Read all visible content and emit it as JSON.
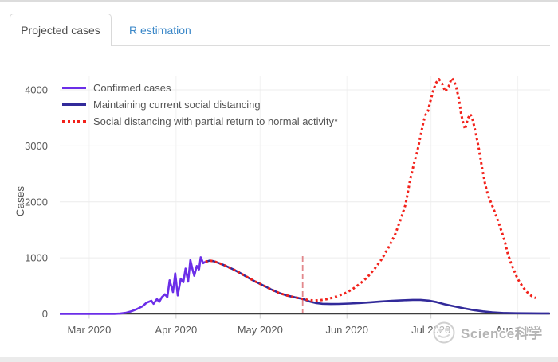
{
  "tabs": {
    "items": [
      {
        "label": "Projected cases",
        "active": true
      },
      {
        "label": "R estimation",
        "active": false
      }
    ]
  },
  "watermark": {
    "text": "Science科学"
  },
  "chart_data": {
    "type": "line",
    "title": "",
    "xlabel": "",
    "ylabel": "Cases",
    "x_axis": {
      "unit": "days since 2020-03-01",
      "range_days": [
        -10.5,
        164.5
      ],
      "tick_days": [
        0,
        31,
        61,
        92,
        122,
        153
      ],
      "tick_labels": [
        "Mar 2020",
        "Apr 2020",
        "May 2020",
        "Jun 2020",
        "Jul 2020",
        "Aug 2020"
      ]
    },
    "y_axis": {
      "range": [
        0,
        4000
      ],
      "ticks": [
        0,
        1000,
        2000,
        3000,
        4000
      ],
      "tick_labels": [
        "0",
        "1000",
        "2000",
        "3000",
        "4000"
      ]
    },
    "grid": true,
    "legend_position": "top-left",
    "vline": {
      "day": 76.2,
      "value_top": 1030,
      "value_bottom": -35,
      "color": "#dd6b70",
      "style": "dashed"
    },
    "colors": {
      "axis_line": "#3d3d3d",
      "grid_h": "#ececec",
      "grid_v": "#f2f2f2",
      "tick_text": "#5a5a5a"
    },
    "series": [
      {
        "name": "Confirmed cases",
        "color": "#6b2ee8",
        "style": "solid",
        "points": [
          [
            -10.5,
            0
          ],
          [
            -6,
            0
          ],
          [
            -2,
            0
          ],
          [
            2,
            0
          ],
          [
            6,
            0
          ],
          [
            9,
            2
          ],
          [
            11,
            5
          ],
          [
            13,
            18
          ],
          [
            15,
            45
          ],
          [
            17,
            85
          ],
          [
            19,
            135
          ],
          [
            20.5,
            200
          ],
          [
            22.2,
            235
          ],
          [
            23,
            180
          ],
          [
            24.2,
            265
          ],
          [
            25,
            215
          ],
          [
            25.9,
            295
          ],
          [
            27,
            350
          ],
          [
            27.9,
            300
          ],
          [
            28.7,
            600
          ],
          [
            29.9,
            390
          ],
          [
            30.7,
            725
          ],
          [
            31.6,
            330
          ],
          [
            32.7,
            630
          ],
          [
            33.6,
            565
          ],
          [
            34.4,
            810
          ],
          [
            35.3,
            575
          ],
          [
            36.1,
            960
          ],
          [
            37,
            770
          ],
          [
            37.5,
            680
          ],
          [
            38.4,
            855
          ],
          [
            39.2,
            795
          ],
          [
            39.8,
            1010
          ],
          [
            40.7,
            905
          ],
          [
            41.5,
            930
          ]
        ]
      },
      {
        "name": "Maintaining current social distancing",
        "color": "#322a9a",
        "style": "solid",
        "points": [
          [
            41.5,
            930
          ],
          [
            43,
            950
          ],
          [
            44.4,
            940
          ],
          [
            46.4,
            905
          ],
          [
            48.6,
            860
          ],
          [
            51.2,
            800
          ],
          [
            53.5,
            740
          ],
          [
            56.3,
            660
          ],
          [
            59.2,
            580
          ],
          [
            62.3,
            505
          ],
          [
            64.8,
            440
          ],
          [
            67.7,
            375
          ],
          [
            70.5,
            330
          ],
          [
            73.4,
            295
          ],
          [
            76.2,
            268
          ],
          [
            78.5,
            225
          ],
          [
            80.8,
            195
          ],
          [
            83.3,
            180
          ],
          [
            86.2,
            176
          ],
          [
            89,
            178
          ],
          [
            93,
            185
          ],
          [
            96.7,
            195
          ],
          [
            100.4,
            207
          ],
          [
            104.1,
            222
          ],
          [
            108.1,
            235
          ],
          [
            111.8,
            243
          ],
          [
            115.5,
            250
          ],
          [
            118.3,
            250
          ],
          [
            121.2,
            237
          ],
          [
            124,
            210
          ],
          [
            126.8,
            172
          ],
          [
            130.3,
            135
          ],
          [
            133.7,
            100
          ],
          [
            137.1,
            68
          ],
          [
            140.5,
            45
          ],
          [
            143.9,
            28
          ],
          [
            147.9,
            16
          ],
          [
            152.4,
            12
          ],
          [
            157.3,
            10
          ],
          [
            161.5,
            9
          ],
          [
            164.4,
            9
          ]
        ]
      },
      {
        "name": "Social distancing with partial return to normal activity*",
        "color": "#f2211a",
        "style": "dotted",
        "points": [
          [
            41.5,
            930
          ],
          [
            43,
            950
          ],
          [
            44.4,
            940
          ],
          [
            46.4,
            905
          ],
          [
            48.6,
            860
          ],
          [
            51.2,
            800
          ],
          [
            53.5,
            740
          ],
          [
            56.3,
            660
          ],
          [
            59.2,
            580
          ],
          [
            62.3,
            505
          ],
          [
            64.8,
            440
          ],
          [
            67.7,
            375
          ],
          [
            70.5,
            330
          ],
          [
            73.4,
            295
          ],
          [
            76.2,
            268
          ],
          [
            77.9,
            250
          ],
          [
            80.2,
            238
          ],
          [
            82.5,
            245
          ],
          [
            85.3,
            268
          ],
          [
            88.2,
            310
          ],
          [
            91.3,
            368
          ],
          [
            94.1,
            445
          ],
          [
            96.7,
            540
          ],
          [
            99.3,
            655
          ],
          [
            101.8,
            800
          ],
          [
            104.4,
            975
          ],
          [
            106.9,
            1190
          ],
          [
            109.2,
            1420
          ],
          [
            111.2,
            1690
          ],
          [
            112.9,
            1950
          ],
          [
            114.6,
            2400
          ],
          [
            116,
            2700
          ],
          [
            117.2,
            2920
          ],
          [
            118.3,
            3180
          ],
          [
            119.2,
            3400
          ],
          [
            120,
            3550
          ],
          [
            120.9,
            3620
          ],
          [
            121.7,
            3780
          ],
          [
            122.6,
            3950
          ],
          [
            123.7,
            4120
          ],
          [
            124.9,
            4190
          ],
          [
            126,
            4110
          ],
          [
            127.1,
            3970
          ],
          [
            128.3,
            4060
          ],
          [
            129.4,
            4210
          ],
          [
            130.3,
            4160
          ],
          [
            131.1,
            4030
          ],
          [
            132,
            3830
          ],
          [
            132.8,
            3560
          ],
          [
            133.7,
            3370
          ],
          [
            134.2,
            3300
          ],
          [
            135.1,
            3480
          ],
          [
            136,
            3570
          ],
          [
            136.8,
            3480
          ],
          [
            137.9,
            3250
          ],
          [
            139.1,
            2950
          ],
          [
            140.2,
            2620
          ],
          [
            141.3,
            2320
          ],
          [
            142.5,
            2100
          ],
          [
            143.9,
            1930
          ],
          [
            145.3,
            1750
          ],
          [
            146.7,
            1550
          ],
          [
            148.3,
            1300
          ],
          [
            149.4,
            1080
          ],
          [
            150.6,
            900
          ],
          [
            151.7,
            770
          ],
          [
            152.8,
            640
          ],
          [
            154,
            540
          ],
          [
            155.1,
            460
          ],
          [
            156.2,
            395
          ],
          [
            157.4,
            340
          ],
          [
            158.5,
            300
          ],
          [
            159.4,
            285
          ]
        ]
      }
    ]
  }
}
